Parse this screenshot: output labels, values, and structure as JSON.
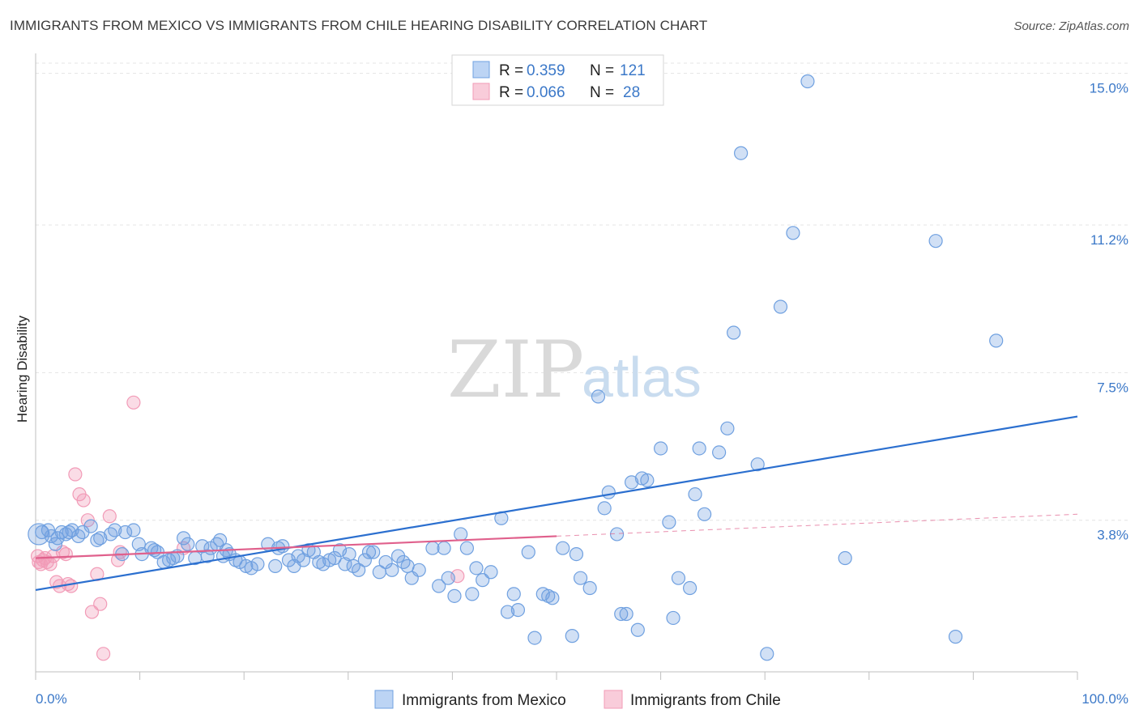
{
  "title": "IMMIGRANTS FROM MEXICO VS IMMIGRANTS FROM CHILE HEARING DISABILITY CORRELATION CHART",
  "source": "Source: ZipAtlas.com",
  "watermark": {
    "zip": "ZIP",
    "atlas": "atlas"
  },
  "colors": {
    "mexico": "#6fa0e0",
    "mexico_line": "#2b6fcf",
    "chile": "#f29bb7",
    "chile_line": "#e0608c",
    "tick_text": "#3b78c8",
    "grid": "#e2e2e2"
  },
  "legend": {
    "rows": [
      {
        "r_label": "R =",
        "r_value": "0.359",
        "n_label": "N =",
        "n_value": "121"
      },
      {
        "r_label": "R =",
        "r_value": "0.066",
        "n_label": "N =",
        "n_value": "28"
      }
    ]
  },
  "chart_data": {
    "type": "scatter",
    "title": "IMMIGRANTS FROM MEXICO VS IMMIGRANTS FROM CHILE HEARING DISABILITY CORRELATION CHART",
    "xlabel": "",
    "ylabel": "Hearing Disability",
    "xlim": [
      0,
      100
    ],
    "ylim": [
      0,
      15.5
    ],
    "x_tick_labels": [
      "0.0%",
      "100.0%"
    ],
    "y_ticks": [
      3.8,
      7.5,
      11.2,
      15.0
    ],
    "y_tick_labels": [
      "3.8%",
      "7.5%",
      "11.2%",
      "15.0%"
    ],
    "grid": true,
    "series": [
      {
        "name": "Immigrants from Mexico",
        "color": "#6fa0e0",
        "trend": {
          "x": [
            0,
            100
          ],
          "y": [
            2.05,
            6.4
          ]
        },
        "points": [
          [
            0.3,
            3.45
          ],
          [
            0.6,
            3.5
          ],
          [
            1.2,
            3.55
          ],
          [
            1.5,
            3.4
          ],
          [
            1.9,
            3.2
          ],
          [
            2.1,
            3.35
          ],
          [
            2.5,
            3.5
          ],
          [
            2.9,
            3.45
          ],
          [
            3.2,
            3.5
          ],
          [
            3.5,
            3.55
          ],
          [
            4.1,
            3.4
          ],
          [
            4.5,
            3.5
          ],
          [
            5.3,
            3.65
          ],
          [
            5.9,
            3.3
          ],
          [
            6.2,
            3.35
          ],
          [
            7.2,
            3.45
          ],
          [
            7.6,
            3.55
          ],
          [
            8.6,
            3.5
          ],
          [
            9.4,
            3.55
          ],
          [
            9.9,
            3.2
          ],
          [
            8.3,
            2.95
          ],
          [
            10.2,
            2.95
          ],
          [
            11.1,
            3.1
          ],
          [
            11.4,
            3.05
          ],
          [
            11.7,
            3.0
          ],
          [
            12.3,
            2.75
          ],
          [
            12.8,
            2.8
          ],
          [
            13.2,
            2.85
          ],
          [
            13.6,
            2.9
          ],
          [
            14.2,
            3.35
          ],
          [
            14.6,
            3.2
          ],
          [
            15.3,
            2.85
          ],
          [
            16.0,
            3.15
          ],
          [
            16.5,
            2.9
          ],
          [
            16.8,
            3.1
          ],
          [
            17.4,
            3.2
          ],
          [
            17.7,
            3.3
          ],
          [
            18.0,
            2.9
          ],
          [
            18.3,
            3.05
          ],
          [
            18.6,
            2.95
          ],
          [
            19.2,
            2.8
          ],
          [
            19.6,
            2.75
          ],
          [
            20.2,
            2.65
          ],
          [
            20.7,
            2.6
          ],
          [
            21.3,
            2.7
          ],
          [
            22.3,
            3.2
          ],
          [
            23.0,
            2.65
          ],
          [
            23.3,
            3.1
          ],
          [
            23.7,
            3.15
          ],
          [
            24.3,
            2.8
          ],
          [
            24.8,
            2.65
          ],
          [
            25.2,
            2.9
          ],
          [
            25.7,
            2.8
          ],
          [
            26.2,
            3.05
          ],
          [
            26.7,
            3.0
          ],
          [
            27.2,
            2.75
          ],
          [
            27.6,
            2.7
          ],
          [
            28.2,
            2.8
          ],
          [
            28.7,
            2.85
          ],
          [
            29.2,
            3.05
          ],
          [
            29.7,
            2.7
          ],
          [
            30.1,
            2.95
          ],
          [
            30.5,
            2.65
          ],
          [
            31.0,
            2.55
          ],
          [
            31.6,
            2.8
          ],
          [
            32.0,
            3.0
          ],
          [
            32.4,
            3.0
          ],
          [
            33.0,
            2.5
          ],
          [
            33.6,
            2.75
          ],
          [
            34.2,
            2.55
          ],
          [
            34.8,
            2.9
          ],
          [
            35.3,
            2.75
          ],
          [
            35.7,
            2.65
          ],
          [
            36.1,
            2.35
          ],
          [
            36.8,
            2.55
          ],
          [
            38.1,
            3.1
          ],
          [
            38.7,
            2.15
          ],
          [
            39.2,
            3.1
          ],
          [
            39.6,
            2.35
          ],
          [
            40.2,
            1.9
          ],
          [
            40.8,
            3.45
          ],
          [
            41.4,
            3.1
          ],
          [
            41.9,
            1.95
          ],
          [
            42.3,
            2.6
          ],
          [
            42.9,
            2.3
          ],
          [
            43.7,
            2.5
          ],
          [
            44.7,
            3.85
          ],
          [
            45.3,
            1.5
          ],
          [
            45.9,
            1.95
          ],
          [
            46.3,
            1.55
          ],
          [
            47.3,
            3.0
          ],
          [
            47.9,
            0.85
          ],
          [
            48.7,
            1.95
          ],
          [
            49.2,
            1.9
          ],
          [
            49.6,
            1.85
          ],
          [
            50.6,
            3.1
          ],
          [
            51.5,
            0.9
          ],
          [
            51.9,
            2.95
          ],
          [
            52.3,
            2.35
          ],
          [
            53.2,
            2.1
          ],
          [
            54.0,
            6.9
          ],
          [
            54.6,
            4.1
          ],
          [
            55.0,
            4.5
          ],
          [
            55.8,
            3.45
          ],
          [
            56.2,
            1.45
          ],
          [
            56.7,
            1.45
          ],
          [
            57.2,
            4.75
          ],
          [
            57.8,
            1.05
          ],
          [
            58.2,
            4.85
          ],
          [
            58.7,
            4.8
          ],
          [
            60.0,
            5.6
          ],
          [
            60.8,
            3.75
          ],
          [
            61.2,
            1.35
          ],
          [
            61.7,
            2.35
          ],
          [
            62.8,
            2.1
          ],
          [
            63.3,
            4.45
          ],
          [
            63.7,
            5.6
          ],
          [
            64.2,
            3.95
          ],
          [
            65.6,
            5.5
          ],
          [
            66.4,
            6.1
          ],
          [
            67.0,
            8.5
          ],
          [
            67.7,
            13.0
          ],
          [
            69.3,
            5.2
          ],
          [
            70.2,
            0.45
          ],
          [
            71.5,
            9.15
          ],
          [
            72.7,
            11.0
          ],
          [
            74.1,
            14.8
          ],
          [
            77.7,
            2.85
          ],
          [
            86.4,
            10.8
          ],
          [
            88.3,
            0.88
          ],
          [
            92.2,
            8.3
          ]
        ]
      },
      {
        "name": "Immigrants from Chile",
        "color": "#f29bb7",
        "trend": {
          "x": [
            0,
            50
          ],
          "y": [
            2.85,
            3.4
          ]
        },
        "trend_extension": {
          "x": [
            50,
            100
          ],
          "y": [
            3.4,
            3.95
          ]
        },
        "points": [
          [
            0.2,
            2.9
          ],
          [
            0.3,
            2.75
          ],
          [
            0.5,
            2.7
          ],
          [
            0.7,
            2.8
          ],
          [
            0.9,
            2.85
          ],
          [
            1.1,
            2.75
          ],
          [
            1.4,
            2.7
          ],
          [
            1.7,
            2.9
          ],
          [
            2.0,
            2.25
          ],
          [
            2.3,
            2.15
          ],
          [
            2.6,
            3.0
          ],
          [
            2.9,
            2.95
          ],
          [
            3.1,
            2.2
          ],
          [
            3.4,
            2.15
          ],
          [
            3.8,
            4.95
          ],
          [
            4.2,
            4.45
          ],
          [
            4.6,
            4.3
          ],
          [
            5.0,
            3.8
          ],
          [
            5.4,
            1.5
          ],
          [
            5.9,
            2.45
          ],
          [
            6.2,
            1.7
          ],
          [
            6.5,
            0.45
          ],
          [
            7.1,
            3.9
          ],
          [
            7.9,
            2.8
          ],
          [
            8.1,
            3.0
          ],
          [
            9.4,
            6.75
          ],
          [
            14.2,
            3.1
          ],
          [
            40.5,
            2.4
          ]
        ]
      }
    ]
  },
  "bottom_legend": [
    {
      "label": "Immigrants from Mexico"
    },
    {
      "label": "Immigrants from Chile"
    }
  ]
}
